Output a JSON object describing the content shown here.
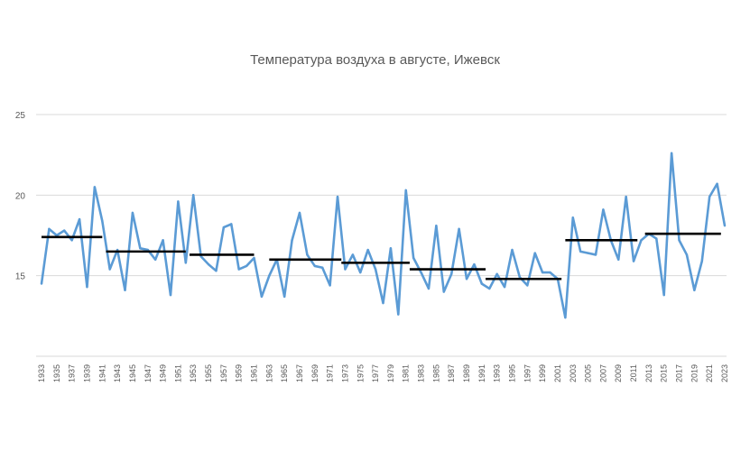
{
  "chart_data": {
    "type": "line",
    "title": "Температура воздуха в августе, Ижевск",
    "xlabel": "",
    "ylabel": "",
    "ylim": [
      10,
      25
    ],
    "yticks": [
      {
        "value": 25,
        "label": "25"
      },
      {
        "value": 20,
        "label": "20"
      },
      {
        "value": 15,
        "label": "15"
      },
      {
        "value": 10,
        "label": ""
      }
    ],
    "grid": true,
    "series_color": "#5B9BD5",
    "mean_line_color": "#000000",
    "x": [
      1933,
      1934,
      1935,
      1936,
      1937,
      1938,
      1939,
      1940,
      1941,
      1942,
      1943,
      1944,
      1945,
      1946,
      1947,
      1948,
      1949,
      1950,
      1951,
      1952,
      1953,
      1954,
      1955,
      1956,
      1957,
      1958,
      1959,
      1960,
      1961,
      1962,
      1963,
      1964,
      1965,
      1966,
      1967,
      1968,
      1969,
      1970,
      1971,
      1972,
      1973,
      1974,
      1975,
      1976,
      1977,
      1978,
      1979,
      1980,
      1981,
      1982,
      1983,
      1984,
      1985,
      1986,
      1987,
      1988,
      1989,
      1990,
      1991,
      1992,
      1993,
      1994,
      1995,
      1996,
      1997,
      1998,
      1999,
      2000,
      2001,
      2002,
      2003,
      2004,
      2005,
      2006,
      2007,
      2008,
      2009,
      2010,
      2011,
      2012,
      2013,
      2014,
      2015,
      2016,
      2017,
      2018,
      2019,
      2020,
      2021,
      2022,
      2023
    ],
    "x_tick_labels": [
      "1933",
      "1935",
      "1937",
      "1939",
      "1941",
      "1943",
      "1945",
      "1947",
      "1949",
      "1951",
      "1953",
      "1955",
      "1957",
      "1959",
      "1961",
      "1963",
      "1965",
      "1967",
      "1969",
      "1971",
      "1973",
      "1975",
      "1977",
      "1979",
      "1981",
      "1983",
      "1985",
      "1987",
      "1989",
      "1991",
      "1993",
      "1995",
      "1997",
      "1999",
      "2001",
      "2003",
      "2005",
      "2007",
      "2009",
      "2011",
      "2013",
      "2015",
      "2017",
      "2019",
      "2021",
      "2023"
    ],
    "series": [
      {
        "values": [
          14.5,
          17.9,
          17.5,
          17.8,
          17.2,
          18.5,
          14.3,
          20.5,
          18.4,
          15.4,
          16.6,
          14.1,
          18.9,
          16.7,
          16.6,
          16.0,
          17.2,
          13.8,
          19.6,
          15.8,
          20.0,
          16.2,
          15.7,
          15.3,
          18.0,
          18.2,
          15.4,
          15.6,
          16.1,
          13.7,
          15.0,
          16.0,
          13.7,
          17.2,
          18.9,
          16.3,
          15.6,
          15.5,
          14.4,
          19.9,
          15.4,
          16.3,
          15.2,
          16.6,
          15.4,
          13.3,
          16.7,
          12.6,
          20.3,
          16.1,
          15.2,
          14.2,
          18.1,
          14.0,
          15.1,
          17.9,
          14.8,
          15.7,
          14.5,
          14.2,
          15.1,
          14.3,
          16.6,
          14.9,
          14.4,
          16.4,
          15.2,
          15.2,
          14.8,
          12.4,
          18.6,
          16.5,
          16.4,
          16.3,
          19.1,
          17.2,
          16.0,
          19.9,
          15.9,
          17.2,
          17.6,
          17.3,
          13.8,
          22.6,
          17.2,
          16.3,
          14.1,
          15.9,
          19.9,
          20.7,
          18.1
        ]
      }
    ],
    "decade_means": [
      {
        "from": 1933,
        "to": 1941,
        "value": 17.4
      },
      {
        "from": 1941.5,
        "to": 1952,
        "value": 16.5
      },
      {
        "from": 1952.5,
        "to": 1961,
        "value": 16.3
      },
      {
        "from": 1963,
        "to": 1972.5,
        "value": 16.0
      },
      {
        "from": 1972.5,
        "to": 1981.5,
        "value": 15.8
      },
      {
        "from": 1981.5,
        "to": 1991.5,
        "value": 15.4
      },
      {
        "from": 1991.5,
        "to": 2001.5,
        "value": 14.8
      },
      {
        "from": 2002,
        "to": 2011.5,
        "value": 17.2
      },
      {
        "from": 2012.5,
        "to": 2022.5,
        "value": 17.6
      }
    ]
  }
}
